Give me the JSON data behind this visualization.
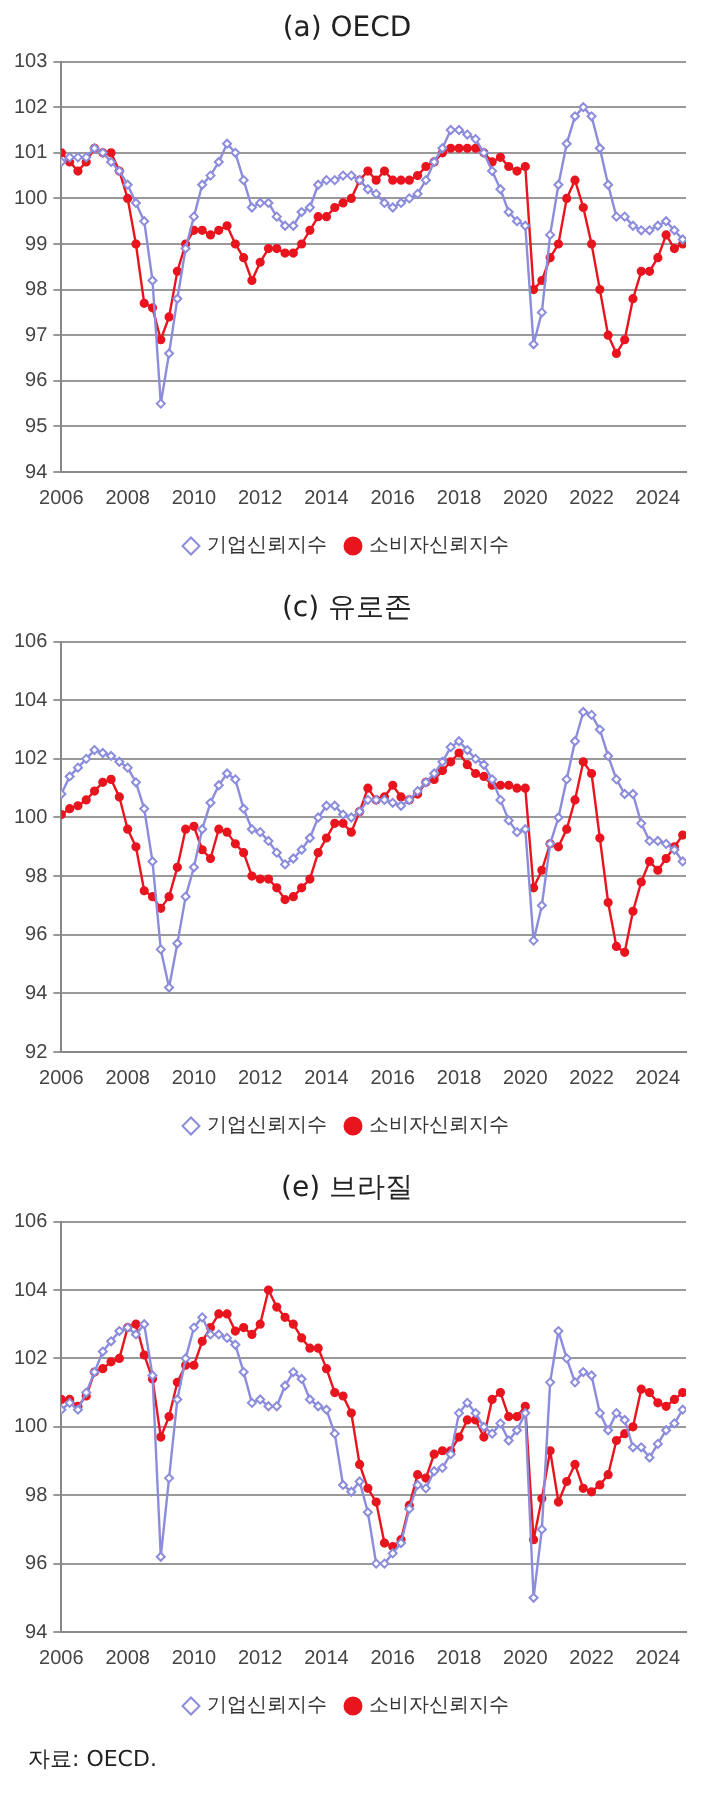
{
  "chart_data": [
    {
      "type": "line",
      "title": "(a) OECD",
      "grid": "y",
      "legend": "bottom",
      "xlim": [
        2006,
        2024.85
      ],
      "xticks": [
        2006,
        2008,
        2010,
        2012,
        2014,
        2016,
        2018,
        2020,
        2022,
        2024
      ],
      "ylim": [
        94,
        103
      ],
      "yticks": [
        94,
        95,
        96,
        97,
        98,
        99,
        100,
        101,
        102,
        103
      ],
      "x": [
        2006,
        2006.25,
        2006.5,
        2006.75,
        2007,
        2007.25,
        2007.5,
        2007.75,
        2008,
        2008.25,
        2008.5,
        2008.75,
        2009,
        2009.25,
        2009.5,
        2009.75,
        2010,
        2010.25,
        2010.5,
        2010.75,
        2011,
        2011.25,
        2011.5,
        2011.75,
        2012,
        2012.25,
        2012.5,
        2012.75,
        2013,
        2013.25,
        2013.5,
        2013.75,
        2014,
        2014.25,
        2014.5,
        2014.75,
        2015,
        2015.25,
        2015.5,
        2015.75,
        2016,
        2016.25,
        2016.5,
        2016.75,
        2017,
        2017.25,
        2017.5,
        2017.75,
        2018,
        2018.25,
        2018.5,
        2018.75,
        2019,
        2019.25,
        2019.5,
        2019.75,
        2020,
        2020.25,
        2020.5,
        2020.75,
        2021,
        2021.25,
        2021.5,
        2021.75,
        2022,
        2022.25,
        2022.5,
        2022.75,
        2023,
        2023.25,
        2023.5,
        2023.75,
        2024,
        2024.25,
        2024.5,
        2024.75
      ],
      "series": [
        {
          "name": "기업신뢰지수",
          "color": "#8c8cdc",
          "marker": "diamond",
          "values": [
            100.8,
            100.9,
            100.9,
            100.9,
            101.1,
            101.0,
            100.8,
            100.6,
            100.3,
            99.9,
            99.5,
            98.2,
            95.5,
            96.6,
            97.8,
            98.9,
            99.6,
            100.3,
            100.5,
            100.8,
            101.2,
            101.0,
            100.4,
            99.8,
            99.9,
            99.9,
            99.6,
            99.4,
            99.4,
            99.7,
            99.8,
            100.3,
            100.4,
            100.4,
            100.5,
            100.5,
            100.4,
            100.2,
            100.1,
            99.9,
            99.8,
            99.9,
            100.0,
            100.1,
            100.4,
            100.8,
            101.1,
            101.5,
            101.5,
            101.4,
            101.3,
            101.0,
            100.6,
            100.2,
            99.7,
            99.5,
            99.4,
            96.8,
            97.5,
            99.2,
            100.3,
            101.2,
            101.8,
            102.0,
            101.8,
            101.1,
            100.3,
            99.6,
            99.6,
            99.4,
            99.3,
            99.3,
            99.4,
            99.5,
            99.3,
            99.1
          ]
        },
        {
          "name": "소비자신뢰지수",
          "color": "#e8141e",
          "marker": "circle",
          "values": [
            101.0,
            100.8,
            100.6,
            100.8,
            101.1,
            101.0,
            101.0,
            100.6,
            100.0,
            99.0,
            97.7,
            97.6,
            96.9,
            97.4,
            98.4,
            99.0,
            99.3,
            99.3,
            99.2,
            99.3,
            99.4,
            99.0,
            98.7,
            98.2,
            98.6,
            98.9,
            98.9,
            98.8,
            98.8,
            99.0,
            99.3,
            99.6,
            99.6,
            99.8,
            99.9,
            100.0,
            100.4,
            100.6,
            100.4,
            100.6,
            100.4,
            100.4,
            100.4,
            100.5,
            100.7,
            100.8,
            101.0,
            101.1,
            101.1,
            101.1,
            101.1,
            101.0,
            100.8,
            100.9,
            100.7,
            100.6,
            100.7,
            98.0,
            98.2,
            98.7,
            99.0,
            100.0,
            100.4,
            99.8,
            99.0,
            98.0,
            97.0,
            96.6,
            96.9,
            97.8,
            98.4,
            98.4,
            98.7,
            99.2,
            98.9,
            99.0
          ]
        }
      ]
    },
    {
      "type": "line",
      "title": "(c) 유로존",
      "grid": "y",
      "legend": "bottom",
      "xlim": [
        2006,
        2024.85
      ],
      "xticks": [
        2006,
        2008,
        2010,
        2012,
        2014,
        2016,
        2018,
        2020,
        2022,
        2024
      ],
      "ylim": [
        92,
        106
      ],
      "yticks": [
        92,
        94,
        96,
        98,
        100,
        102,
        104,
        106
      ],
      "x": [
        2006,
        2006.25,
        2006.5,
        2006.75,
        2007,
        2007.25,
        2007.5,
        2007.75,
        2008,
        2008.25,
        2008.5,
        2008.75,
        2009,
        2009.25,
        2009.5,
        2009.75,
        2010,
        2010.25,
        2010.5,
        2010.75,
        2011,
        2011.25,
        2011.5,
        2011.75,
        2012,
        2012.25,
        2012.5,
        2012.75,
        2013,
        2013.25,
        2013.5,
        2013.75,
        2014,
        2014.25,
        2014.5,
        2014.75,
        2015,
        2015.25,
        2015.5,
        2015.75,
        2016,
        2016.25,
        2016.5,
        2016.75,
        2017,
        2017.25,
        2017.5,
        2017.75,
        2018,
        2018.25,
        2018.5,
        2018.75,
        2019,
        2019.25,
        2019.5,
        2019.75,
        2020,
        2020.25,
        2020.5,
        2020.75,
        2021,
        2021.25,
        2021.5,
        2021.75,
        2022,
        2022.25,
        2022.5,
        2022.75,
        2023,
        2023.25,
        2023.5,
        2023.75,
        2024,
        2024.25,
        2024.5,
        2024.75
      ],
      "series": [
        {
          "name": "기업신뢰지수",
          "color": "#8c8cdc",
          "marker": "diamond",
          "values": [
            100.8,
            101.4,
            101.7,
            102.0,
            102.3,
            102.2,
            102.1,
            101.9,
            101.7,
            101.2,
            100.3,
            98.5,
            95.5,
            94.2,
            95.7,
            97.3,
            98.3,
            99.6,
            100.5,
            101.1,
            101.5,
            101.3,
            100.3,
            99.6,
            99.5,
            99.2,
            98.8,
            98.4,
            98.6,
            98.9,
            99.3,
            100.0,
            100.4,
            100.4,
            100.1,
            100.0,
            100.2,
            100.6,
            100.6,
            100.6,
            100.5,
            100.4,
            100.6,
            100.9,
            101.2,
            101.5,
            101.9,
            102.4,
            102.6,
            102.3,
            102.0,
            101.8,
            101.3,
            100.6,
            99.9,
            99.5,
            99.6,
            95.8,
            97.0,
            99.1,
            100.0,
            101.3,
            102.6,
            103.6,
            103.5,
            103.0,
            102.1,
            101.3,
            100.8,
            100.8,
            99.8,
            99.2,
            99.2,
            99.1,
            98.9,
            98.5
          ]
        },
        {
          "name": "소비자신뢰지수",
          "color": "#e8141e",
          "marker": "circle",
          "values": [
            100.1,
            100.3,
            100.4,
            100.6,
            100.9,
            101.2,
            101.3,
            100.7,
            99.6,
            99.0,
            97.5,
            97.3,
            96.9,
            97.3,
            98.3,
            99.6,
            99.7,
            98.9,
            98.6,
            99.6,
            99.5,
            99.1,
            98.8,
            98.0,
            97.9,
            97.9,
            97.6,
            97.2,
            97.3,
            97.6,
            97.9,
            98.8,
            99.3,
            99.8,
            99.8,
            99.5,
            100.2,
            101.0,
            100.6,
            100.7,
            101.1,
            100.7,
            100.6,
            100.8,
            101.2,
            101.3,
            101.6,
            101.9,
            102.2,
            101.8,
            101.5,
            101.4,
            101.1,
            101.1,
            101.1,
            101.0,
            101.0,
            97.6,
            98.2,
            99.1,
            99.0,
            99.6,
            100.6,
            101.9,
            101.5,
            99.3,
            97.1,
            95.6,
            95.4,
            96.8,
            97.8,
            98.5,
            98.2,
            98.6,
            99.0,
            99.4
          ]
        }
      ]
    },
    {
      "type": "line",
      "title": "(e) 브라질",
      "grid": "y",
      "legend": "bottom",
      "xlim": [
        2006,
        2024.85
      ],
      "xticks": [
        2006,
        2008,
        2010,
        2012,
        2014,
        2016,
        2018,
        2020,
        2022,
        2024
      ],
      "ylim": [
        94,
        106
      ],
      "yticks": [
        94,
        96,
        98,
        100,
        102,
        104,
        106
      ],
      "annotations": [
        "자료: OECD."
      ],
      "x": [
        2006,
        2006.25,
        2006.5,
        2006.75,
        2007,
        2007.25,
        2007.5,
        2007.75,
        2008,
        2008.25,
        2008.5,
        2008.75,
        2009,
        2009.25,
        2009.5,
        2009.75,
        2010,
        2010.25,
        2010.5,
        2010.75,
        2011,
        2011.25,
        2011.5,
        2011.75,
        2012,
        2012.25,
        2012.5,
        2012.75,
        2013,
        2013.25,
        2013.5,
        2013.75,
        2014,
        2014.25,
        2014.5,
        2014.75,
        2015,
        2015.25,
        2015.5,
        2015.75,
        2016,
        2016.25,
        2016.5,
        2016.75,
        2017,
        2017.25,
        2017.5,
        2017.75,
        2018,
        2018.25,
        2018.5,
        2018.75,
        2019,
        2019.25,
        2019.5,
        2019.75,
        2020,
        2020.25,
        2020.5,
        2020.75,
        2021,
        2021.25,
        2021.5,
        2021.75,
        2022,
        2022.25,
        2022.5,
        2022.75,
        2023,
        2023.25,
        2023.5,
        2023.75,
        2024,
        2024.25,
        2024.5,
        2024.75
      ],
      "series": [
        {
          "name": "기업신뢰지수",
          "color": "#8c8cdc",
          "marker": "diamond",
          "values": [
            100.5,
            100.7,
            100.5,
            101.0,
            101.6,
            102.2,
            102.5,
            102.8,
            102.9,
            102.7,
            103.0,
            101.5,
            96.2,
            98.5,
            100.8,
            102.0,
            102.9,
            103.2,
            102.7,
            102.7,
            102.6,
            102.4,
            101.6,
            100.7,
            100.8,
            100.6,
            100.6,
            101.2,
            101.6,
            101.4,
            100.8,
            100.6,
            100.5,
            99.8,
            98.3,
            98.1,
            98.4,
            97.5,
            96.0,
            96.0,
            96.3,
            96.6,
            97.6,
            98.3,
            98.2,
            98.7,
            98.8,
            99.2,
            100.4,
            100.7,
            100.4,
            100.0,
            99.8,
            100.1,
            99.6,
            99.9,
            100.4,
            95.0,
            97.0,
            101.3,
            102.8,
            102.0,
            101.3,
            101.6,
            101.5,
            100.4,
            99.9,
            100.4,
            100.2,
            99.4,
            99.4,
            99.1,
            99.5,
            99.9,
            100.1,
            100.5
          ]
        },
        {
          "name": "소비자신뢰지수",
          "color": "#e8141e",
          "marker": "circle",
          "values": [
            100.8,
            100.8,
            100.6,
            100.9,
            101.6,
            101.7,
            101.9,
            102.0,
            102.9,
            103.0,
            102.1,
            101.4,
            99.7,
            100.3,
            101.3,
            101.8,
            101.8,
            102.5,
            102.9,
            103.3,
            103.3,
            102.8,
            102.9,
            102.7,
            103.0,
            104.0,
            103.5,
            103.2,
            103.0,
            102.6,
            102.3,
            102.3,
            101.7,
            101.0,
            100.9,
            100.4,
            98.9,
            98.2,
            97.8,
            96.6,
            96.5,
            96.7,
            97.7,
            98.6,
            98.5,
            99.2,
            99.3,
            99.3,
            99.7,
            100.2,
            100.2,
            99.7,
            100.8,
            101.0,
            100.3,
            100.3,
            100.6,
            96.7,
            97.9,
            99.3,
            97.8,
            98.4,
            98.9,
            98.2,
            98.1,
            98.3,
            98.6,
            99.6,
            99.8,
            100.0,
            101.1,
            101.0,
            100.7,
            100.6,
            100.8,
            101.0
          ]
        }
      ]
    }
  ]
}
